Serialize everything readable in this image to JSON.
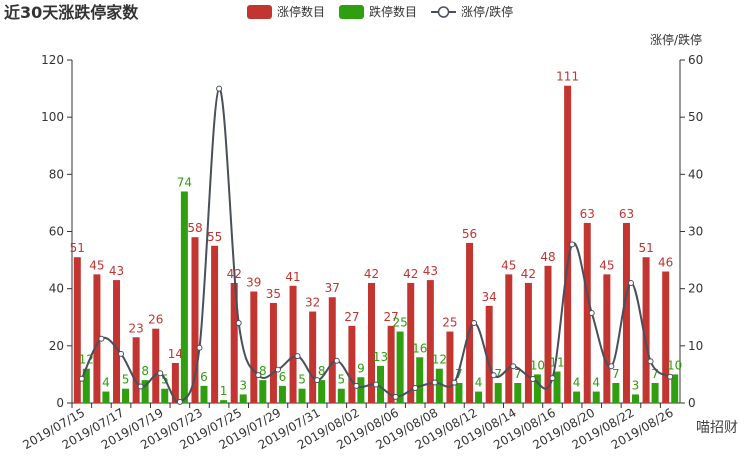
{
  "chart_data": {
    "type": "bar-line",
    "title": "近30天涨跌停家数",
    "y2_label": "涨停/跌停",
    "watermark": "喵招财",
    "categories": [
      "2019/07/15",
      null,
      "2019/07/17",
      null,
      "2019/07/19",
      null,
      "2019/07/23",
      null,
      "2019/07/25",
      null,
      "2019/07/29",
      null,
      "2019/07/31",
      null,
      "2019/08/02",
      null,
      "2019/08/06",
      null,
      "2019/08/08",
      null,
      "2019/08/12",
      null,
      "2019/08/14",
      null,
      "2019/08/16",
      null,
      "2019/08/20",
      null,
      "2019/08/22",
      null,
      "2019/08/26"
    ],
    "series": [
      {
        "name": "涨停数目",
        "color": "#c23531",
        "kind": "bar",
        "values": [
          51,
          45,
          43,
          23,
          26,
          14,
          58,
          55,
          42,
          39,
          35,
          41,
          32,
          37,
          27,
          42,
          27,
          42,
          43,
          25,
          56,
          34,
          45,
          42,
          48,
          111,
          63,
          45,
          63,
          51,
          46
        ]
      },
      {
        "name": "跌停数目",
        "color": "#2f9e0f",
        "kind": "bar",
        "values": [
          12,
          4,
          5,
          8,
          5,
          74,
          6,
          1,
          3,
          8,
          6,
          5,
          8,
          5,
          9,
          13,
          25,
          16,
          12,
          7,
          4,
          7,
          7,
          10,
          11,
          4,
          4,
          7,
          3,
          7,
          10
        ]
      },
      {
        "name": "涨停/跌停",
        "color": "#4a4f5c",
        "kind": "line",
        "axis": "y2",
        "values": [
          4.25,
          11.25,
          8.6,
          2.88,
          5.2,
          0.19,
          9.67,
          55,
          14,
          4.88,
          5.83,
          8.2,
          4,
          7.4,
          3,
          3.23,
          1.08,
          2.63,
          3.58,
          3.57,
          14,
          4.86,
          6.43,
          4.2,
          4.36,
          27.75,
          15.75,
          6.43,
          21,
          7.29,
          4.6
        ]
      }
    ],
    "ylim": [
      0,
      120
    ],
    "yticks": [
      0,
      20,
      40,
      60,
      80,
      100,
      120
    ],
    "y2lim": [
      0,
      60
    ],
    "y2ticks": [
      0,
      10,
      20,
      30,
      40,
      50,
      60
    ]
  }
}
